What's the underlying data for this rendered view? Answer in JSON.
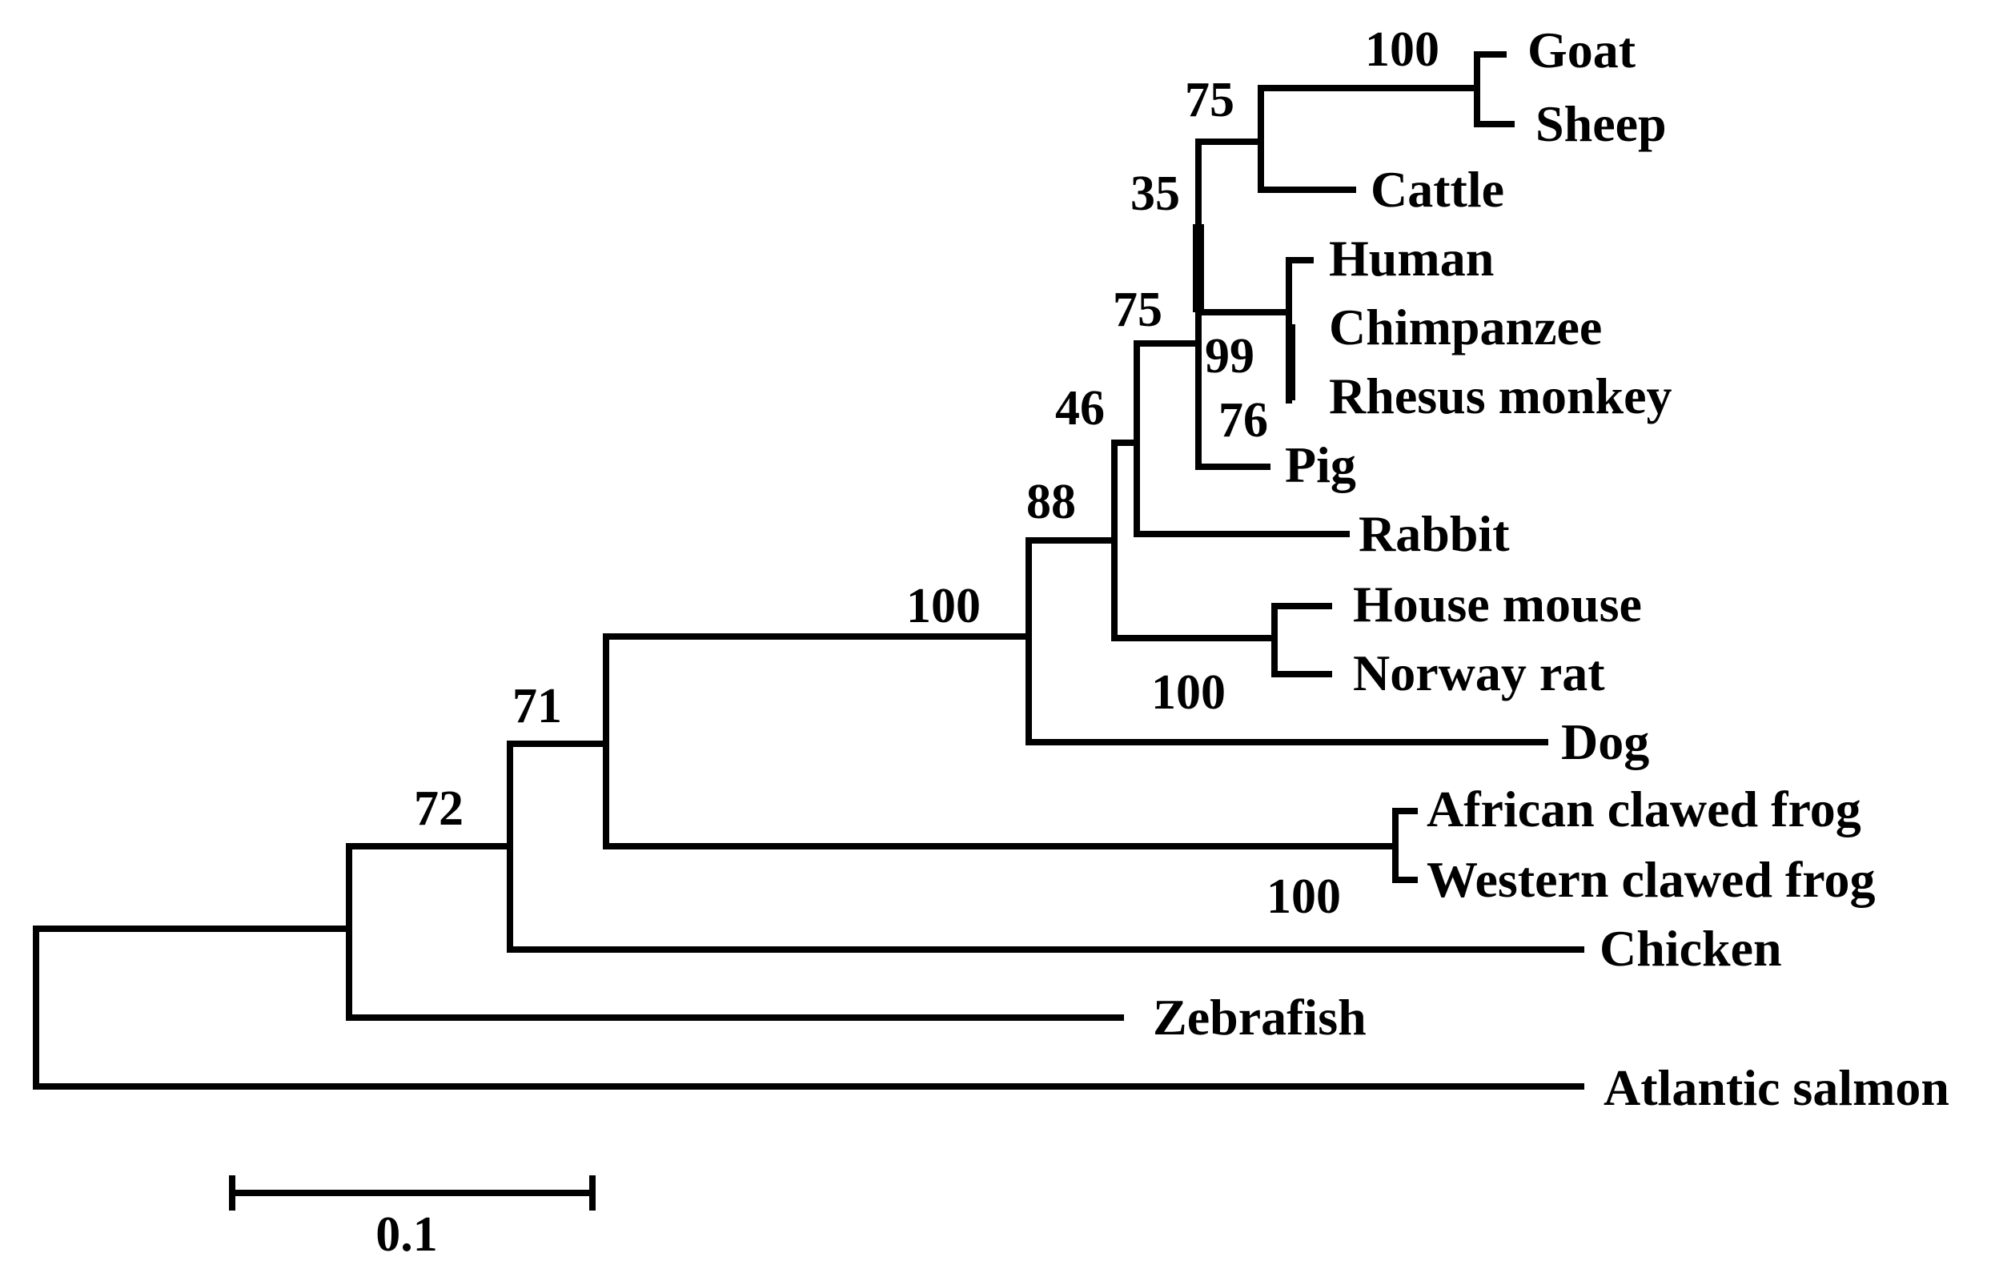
{
  "taxa": {
    "goat": "Goat",
    "sheep": "Sheep",
    "cattle": "Cattle",
    "human": "Human",
    "chimpanzee": "Chimpanzee",
    "rhesus": "Rhesus monkey",
    "pig": "Pig",
    "rabbit": "Rabbit",
    "mouse": "House mouse",
    "rat": "Norway rat",
    "dog": "Dog",
    "african_frog": "African clawed frog",
    "western_frog": "Western clawed frog",
    "chicken": "Chicken",
    "zebrafish": "Zebrafish",
    "salmon": "Atlantic salmon"
  },
  "support": {
    "goat_sheep": "100",
    "bovid": "75",
    "bovid_primate_pig": "35",
    "primates": "99",
    "chimp_rhesus": "76",
    "with_rabbit": "75",
    "with_rodents": "46",
    "rodents": "100",
    "mammals": "88",
    "mammals_dog": "100",
    "frogs": "100",
    "tetrapods": "71",
    "amniote_frog": "72"
  },
  "scale": {
    "label": "0.1",
    "value": 0.1
  }
}
